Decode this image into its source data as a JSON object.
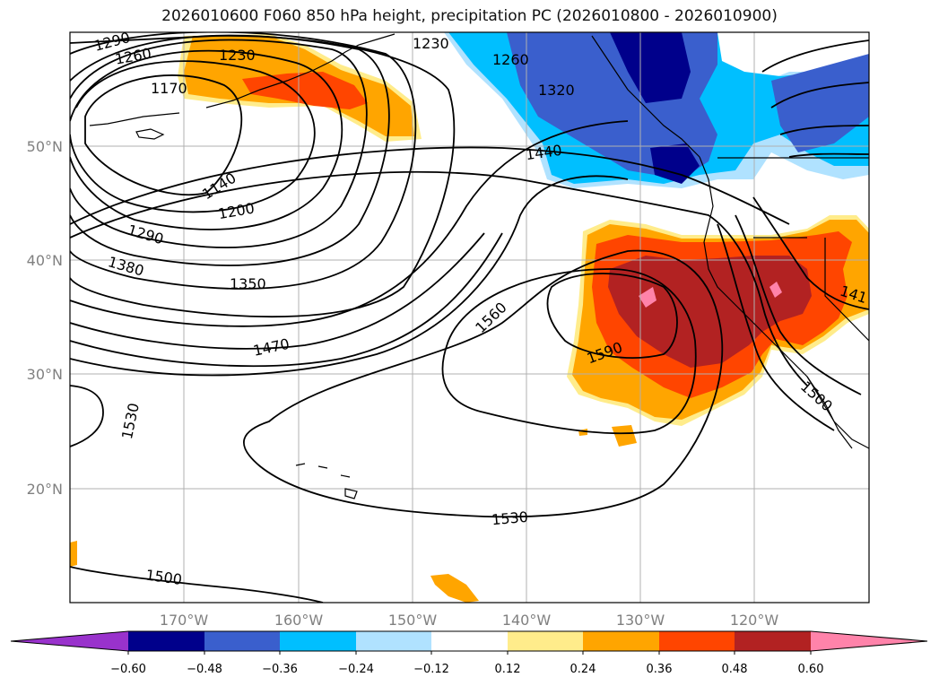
{
  "title": "2026010600 F060 850 hPa height, precipitation PC (2026010800 - 2026010900)",
  "longitude_labels": [
    "170°W",
    "160°W",
    "150°W",
    "140°W",
    "130°W",
    "120°W"
  ],
  "latitude_labels": [
    "50°N",
    "40°N",
    "30°N",
    "20°N"
  ],
  "height_contour_labels": [
    "1290",
    "1260",
    "1230",
    "1170",
    "1230",
    "1260",
    "1320",
    "1440",
    "1140",
    "1200",
    "1290",
    "1380",
    "1350",
    "1470",
    "1560",
    "1590",
    "1530",
    "1530",
    "1500",
    "1500",
    "141"
  ],
  "colorbar": {
    "tick_labels": [
      "−0.60",
      "−0.48",
      "−0.36",
      "−0.24",
      "−0.12",
      "0.12",
      "0.24",
      "0.36",
      "0.48",
      "0.60"
    ],
    "colors": [
      "#9932cc",
      "#00008b",
      "#3a5fcd",
      "#00bfff",
      "#b0e2ff",
      "#ffffff",
      "#ffec8b",
      "#ffa500",
      "#ff4500",
      "#b22222",
      "#ff83aa"
    ]
  },
  "colors": {
    "dark_red": "#b22222",
    "red_orange": "#ff4500",
    "orange": "#ffa500",
    "light_yellow": "#ffec8b",
    "pink": "#ff83aa",
    "navy": "#00008b",
    "royal_blue": "#3a5fcd",
    "sky_blue": "#00bfff",
    "pale_blue": "#b0e2ff"
  }
}
